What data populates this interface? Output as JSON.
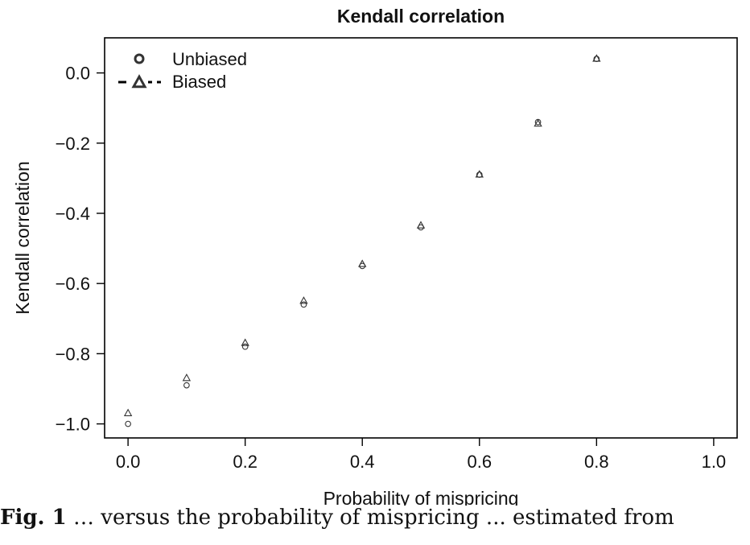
{
  "chart_data": {
    "type": "scatter",
    "title": "Kendall correlation",
    "xlabel": "Probability of mispricing",
    "ylabel": "Kendall correlation",
    "xlim": [
      -0.04,
      1.04
    ],
    "ylim": [
      -1.04,
      0.1
    ],
    "x_ticks": [
      0.0,
      0.2,
      0.4,
      0.6,
      0.8,
      1.0
    ],
    "x_tick_labels": [
      "0.0",
      "0.2",
      "0.4",
      "0.6",
      "0.8",
      "1.0"
    ],
    "y_ticks": [
      0.0,
      -0.2,
      -0.4,
      -0.6,
      -0.8,
      -1.0
    ],
    "y_tick_labels": [
      "0.0",
      "−0.2",
      "−0.4",
      "−0.6",
      "−0.8",
      "−1.0"
    ],
    "grid": false,
    "legend_position": "top-left",
    "series": [
      {
        "name": "Unbiased",
        "marker": "circle",
        "x": [
          0.0,
          0.1,
          0.2,
          0.3,
          0.4,
          0.5,
          0.6,
          0.7,
          0.8
        ],
        "y": [
          -1.0,
          -0.89,
          -0.78,
          -0.66,
          -0.55,
          -0.44,
          -0.29,
          -0.14,
          0.04
        ]
      },
      {
        "name": "Biased",
        "marker": "triangle",
        "x": [
          0.0,
          0.1,
          0.2,
          0.3,
          0.4,
          0.5,
          0.6,
          0.7,
          0.8
        ],
        "y": [
          -0.97,
          -0.87,
          -0.77,
          -0.65,
          -0.545,
          -0.435,
          -0.29,
          -0.145,
          0.04
        ]
      }
    ],
    "colors": {
      "axis": "#000000",
      "marker": "#333333",
      "text": "#111111"
    }
  },
  "caption": {
    "label": "Fig. 1",
    "text": "… versus the probability of mispricing ... estimated from"
  }
}
